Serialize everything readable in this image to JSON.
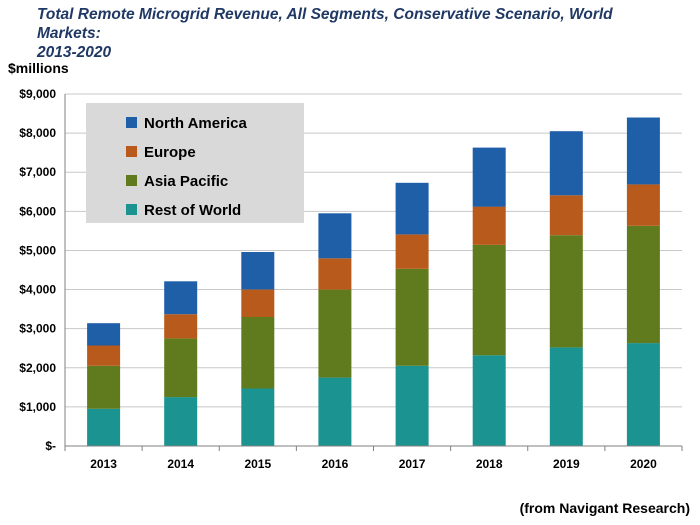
{
  "header": {
    "title_line1": "Total Remote Microgrid Revenue, All Segments, Conservative Scenario, World Markets:",
    "title_line2": "2013-2020",
    "unit_label": "$millions",
    "source": "(from Navigant Research)"
  },
  "chart_data": {
    "type": "bar",
    "stacked": true,
    "title": "Total Remote Microgrid Revenue, All Segments, Conservative Scenario, World Markets: 2013-2020",
    "xlabel": "",
    "ylabel": "$millions",
    "ylim": [
      0,
      9000
    ],
    "grid": true,
    "legend_position": "top-left",
    "categories": [
      "2013",
      "2014",
      "2015",
      "2016",
      "2017",
      "2018",
      "2019",
      "2020"
    ],
    "y_tick_values": [
      0,
      1000,
      2000,
      3000,
      4000,
      5000,
      6000,
      7000,
      8000,
      9000
    ],
    "y_tick_labels": [
      "$-",
      "$1,000",
      "$2,000",
      "$3,000",
      "$4,000",
      "$5,000",
      "$6,000",
      "$7,000",
      "$8,000",
      "$9,000"
    ],
    "series": [
      {
        "name": "Rest of World",
        "color": "#1a9391",
        "values": [
          950,
          1250,
          1470,
          1750,
          2050,
          2320,
          2520,
          2630
        ]
      },
      {
        "name": "Asia Pacific",
        "color": "#5f7b1e",
        "values": [
          1100,
          1500,
          1830,
          2250,
          2480,
          2820,
          2870,
          3000
        ]
      },
      {
        "name": "Europe",
        "color": "#b85a1b",
        "values": [
          520,
          620,
          700,
          800,
          880,
          980,
          1020,
          1060
        ]
      },
      {
        "name": "North America",
        "color": "#1f5fa8",
        "values": [
          570,
          840,
          960,
          1150,
          1320,
          1510,
          1640,
          1710
        ]
      }
    ],
    "legend_order": [
      "North America",
      "Europe",
      "Asia Pacific",
      "Rest of World"
    ],
    "legend_bg": "#d9d9d9",
    "grid_color": "#c8c8c8"
  }
}
